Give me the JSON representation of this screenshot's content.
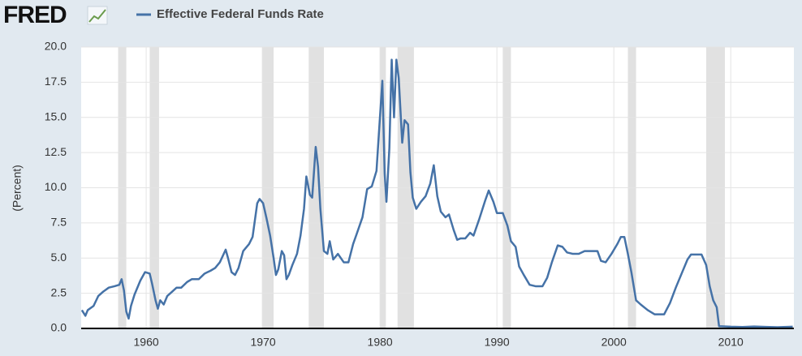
{
  "chart_data": {
    "type": "line",
    "logo": "FRED",
    "ylabel": "(Percent)",
    "xlim": [
      1954.44,
      2015.4
    ],
    "xticks": [
      1960,
      1970,
      1980,
      1990,
      2000,
      2010
    ],
    "ylim": [
      0,
      20
    ],
    "yticks": [
      {
        "value": 0,
        "label": "0.0"
      },
      2.5,
      {
        "value": 5,
        "label": "5.0"
      },
      7.5,
      {
        "value": 10,
        "label": "10.0"
      },
      12.5,
      {
        "value": 15,
        "label": "15.0"
      },
      17.5,
      {
        "value": 20,
        "label": "20.0"
      }
    ],
    "grid": true,
    "recession_color": "#e1e1e1",
    "recessions": [
      [
        1957.6,
        1958.3
      ],
      [
        1960.3,
        1961.1
      ],
      [
        1969.9,
        1970.9
      ],
      [
        1973.9,
        1975.2
      ],
      [
        1980.0,
        1980.5
      ],
      [
        1981.5,
        1982.9
      ],
      [
        1990.5,
        1991.2
      ],
      [
        2001.2,
        2001.9
      ],
      [
        2007.9,
        2009.5
      ]
    ],
    "series": [
      {
        "name": "Effective Federal Funds Rate",
        "color": "#4572a7",
        "x": [
          1954.5,
          1954.8,
          1955.0,
          1955.5,
          1955.9,
          1956.3,
          1956.8,
          1957.3,
          1957.7,
          1957.9,
          1958.1,
          1958.3,
          1958.5,
          1958.7,
          1959.0,
          1959.5,
          1959.9,
          1960.3,
          1960.5,
          1960.8,
          1961.0,
          1961.2,
          1961.5,
          1961.8,
          1962.2,
          1962.6,
          1963.0,
          1963.5,
          1963.9,
          1964.5,
          1965.0,
          1965.5,
          1965.9,
          1966.3,
          1966.8,
          1967.0,
          1967.3,
          1967.6,
          1967.9,
          1968.3,
          1968.8,
          1969.1,
          1969.5,
          1969.7,
          1970.0,
          1970.3,
          1970.6,
          1970.9,
          1971.1,
          1971.3,
          1971.6,
          1971.8,
          1972.0,
          1972.2,
          1972.5,
          1972.9,
          1973.2,
          1973.5,
          1973.7,
          1974.0,
          1974.2,
          1974.5,
          1974.7,
          1974.9,
          1975.2,
          1975.5,
          1975.7,
          1976.0,
          1976.4,
          1976.9,
          1977.3,
          1977.7,
          1978.0,
          1978.5,
          1978.9,
          1979.3,
          1979.7,
          1979.9,
          1980.2,
          1980.4,
          1980.55,
          1980.8,
          1981.0,
          1981.2,
          1981.4,
          1981.6,
          1981.9,
          1982.1,
          1982.4,
          1982.6,
          1982.8,
          1983.1,
          1983.5,
          1983.9,
          1984.3,
          1984.6,
          1984.9,
          1985.2,
          1985.6,
          1985.9,
          1986.3,
          1986.6,
          1986.9,
          1987.3,
          1987.7,
          1988.0,
          1988.5,
          1989.0,
          1989.3,
          1989.7,
          1990.0,
          1990.5,
          1990.9,
          1991.2,
          1991.6,
          1991.9,
          1992.3,
          1992.8,
          1993.3,
          1993.9,
          1994.3,
          1994.7,
          1995.2,
          1995.6,
          1996.0,
          1996.5,
          1997.0,
          1997.5,
          1998.0,
          1998.6,
          1998.9,
          1999.3,
          1999.8,
          2000.3,
          2000.6,
          2000.9,
          2001.2,
          2001.5,
          2001.9,
          2002.3,
          2002.9,
          2003.5,
          2004.3,
          2004.8,
          2005.3,
          2005.8,
          2006.3,
          2006.6,
          2007.5,
          2007.9,
          2008.2,
          2008.5,
          2008.8,
          2009.0,
          2010.0,
          2011.0,
          2012.0,
          2013.0,
          2014.0,
          2015.3
        ],
        "values": [
          1.3,
          0.9,
          1.3,
          1.6,
          2.3,
          2.6,
          2.9,
          3.0,
          3.1,
          3.5,
          2.7,
          1.2,
          0.7,
          1.6,
          2.4,
          3.4,
          4.0,
          3.9,
          3.2,
          2.0,
          1.4,
          2.0,
          1.7,
          2.3,
          2.6,
          2.9,
          2.9,
          3.3,
          3.5,
          3.5,
          3.9,
          4.1,
          4.3,
          4.7,
          5.6,
          5.0,
          4.0,
          3.8,
          4.3,
          5.5,
          6.0,
          6.5,
          8.9,
          9.2,
          8.9,
          7.8,
          6.6,
          5.0,
          3.8,
          4.2,
          5.5,
          5.2,
          3.5,
          3.8,
          4.5,
          5.3,
          6.6,
          8.5,
          10.8,
          9.5,
          9.3,
          12.9,
          11.5,
          8.5,
          5.5,
          5.3,
          6.2,
          4.9,
          5.3,
          4.7,
          4.7,
          6.0,
          6.7,
          7.9,
          9.9,
          10.1,
          11.2,
          13.8,
          17.6,
          11.0,
          9.0,
          12.8,
          19.1,
          15.0,
          19.1,
          17.8,
          13.2,
          14.8,
          14.5,
          11.1,
          9.3,
          8.5,
          9.0,
          9.4,
          10.3,
          11.6,
          9.4,
          8.3,
          7.9,
          8.1,
          7.0,
          6.3,
          6.4,
          6.4,
          6.8,
          6.6,
          7.8,
          9.1,
          9.8,
          9.0,
          8.2,
          8.2,
          7.3,
          6.2,
          5.8,
          4.4,
          3.8,
          3.1,
          3.0,
          3.0,
          3.6,
          4.7,
          5.9,
          5.8,
          5.4,
          5.3,
          5.3,
          5.5,
          5.5,
          5.5,
          4.8,
          4.7,
          5.3,
          6.0,
          6.5,
          6.5,
          5.3,
          4.0,
          2.0,
          1.7,
          1.3,
          1.0,
          1.0,
          1.8,
          2.9,
          3.9,
          4.9,
          5.25,
          5.25,
          4.5,
          3.0,
          2.0,
          1.5,
          0.16,
          0.12,
          0.1,
          0.14,
          0.11,
          0.09,
          0.12
        ]
      }
    ]
  }
}
